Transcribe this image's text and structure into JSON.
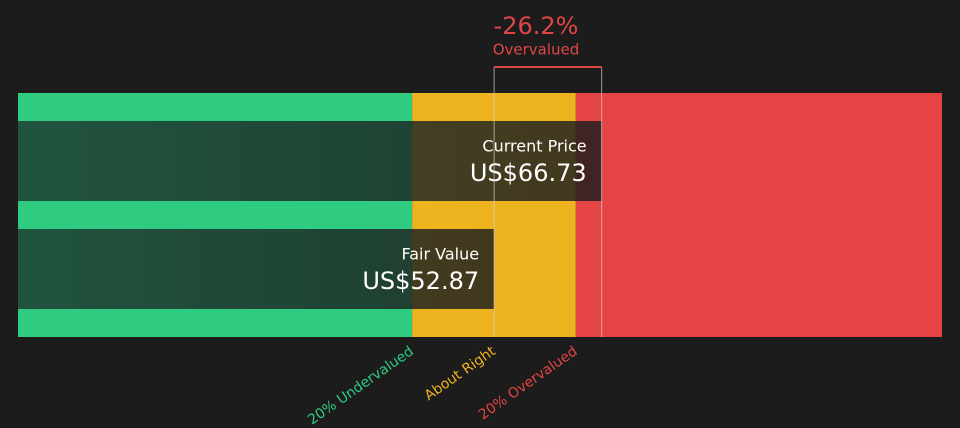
{
  "chart_data": {
    "type": "valuation",
    "percent": {
      "value": -26.2,
      "label": "-26.2%"
    },
    "verdict": "Overvalued",
    "verdict_color": "#e04646",
    "xlim": [
      -8.5,
      110.6
    ],
    "zones": [
      {
        "label": "20% Undervalued",
        "color": "#2ecb80",
        "from": -8.5,
        "to": 42.3
      },
      {
        "label": "About Right",
        "color": "#eeb41f",
        "from": 42.3,
        "to": 63.4
      },
      {
        "label": "20% Overvalued",
        "color": "#e54444",
        "from": 63.4,
        "to": 110.6
      }
    ],
    "bars": [
      {
        "name": "Current Price",
        "value": 66.73,
        "value_label": "US$66.73"
      },
      {
        "name": "Fair Value",
        "value": 52.87,
        "value_label": "US$52.87"
      }
    ]
  }
}
